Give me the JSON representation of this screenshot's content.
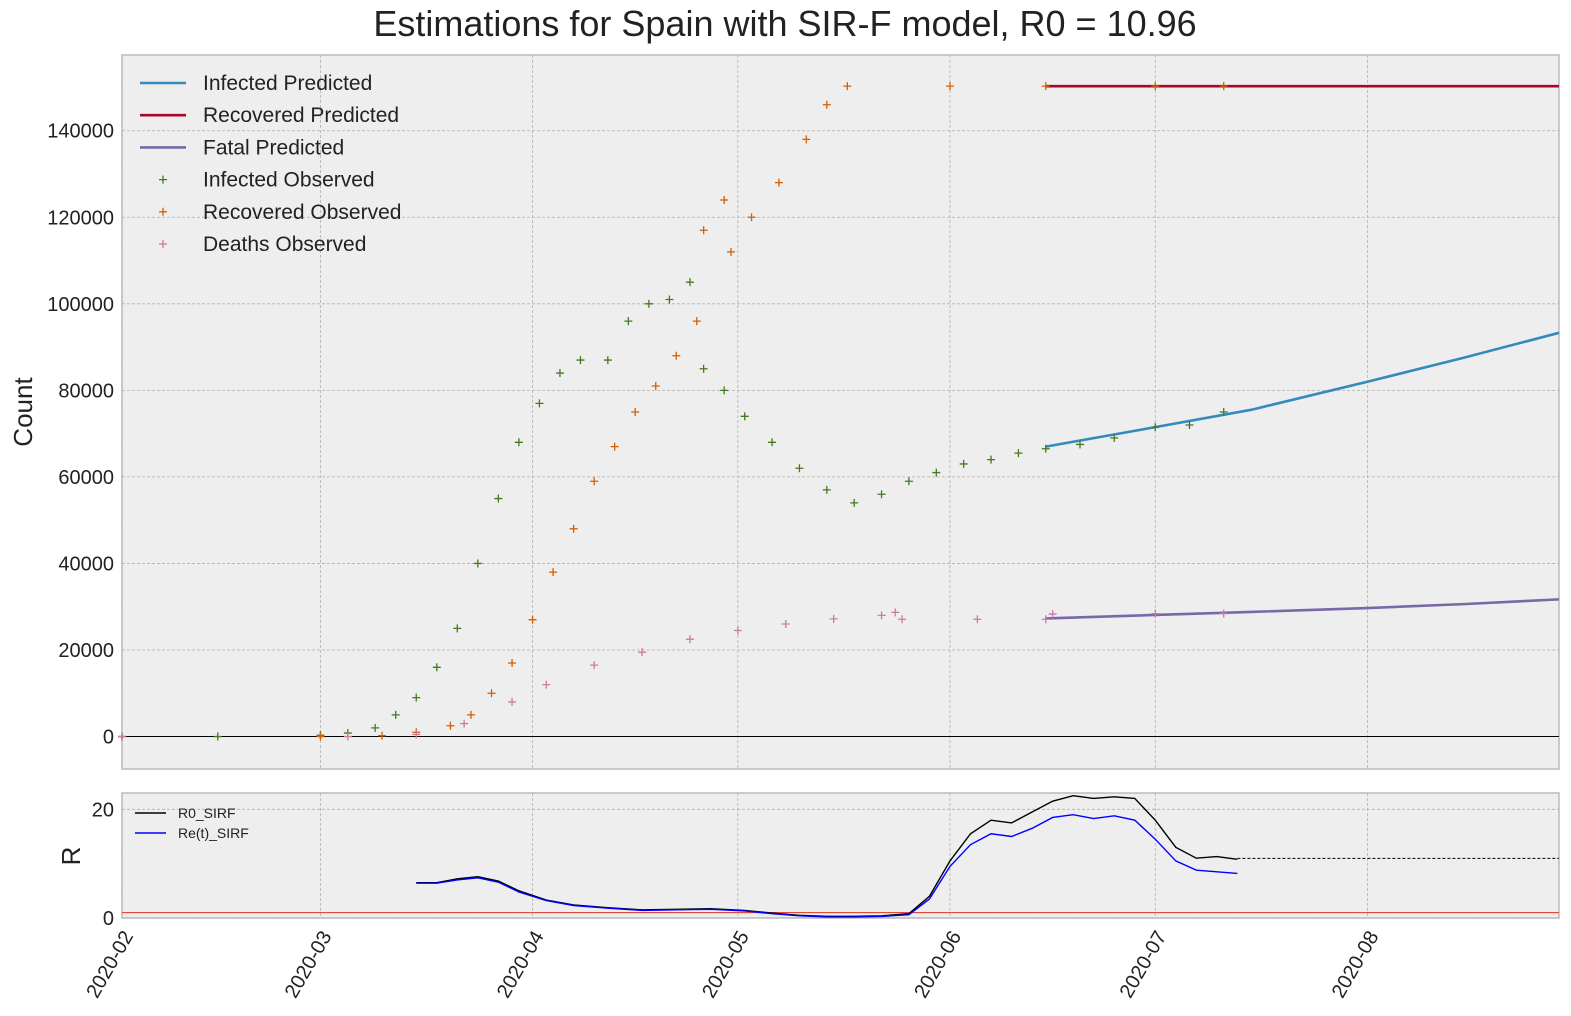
{
  "chart_data": [
    {
      "type": "line",
      "title": "Estimations for Spain with SIR-F model, R0 = 10.96",
      "xlabel": "",
      "ylabel": "Count",
      "xlim": [
        "2020-02-01",
        "2020-08-29"
      ],
      "ylim": [
        -7500,
        157500
      ],
      "yticks": [
        "0",
        "20000",
        "40000",
        "60000",
        "80000",
        "100000",
        "120000",
        "140000"
      ],
      "grid": true,
      "legend": "top-left",
      "series": [
        {
          "name": "Infected Predicted",
          "style": "line",
          "color": "#348abd",
          "x": [
            "2020-06-15",
            "2020-07-01",
            "2020-07-15",
            "2020-08-01",
            "2020-08-15",
            "2020-08-29"
          ],
          "y": [
            67000,
            71500,
            75500,
            82000,
            87500,
            93300
          ]
        },
        {
          "name": "Recovered Predicted",
          "style": "line",
          "color": "#a60628",
          "x": [
            "2020-06-15",
            "2020-08-29"
          ],
          "y": [
            150300,
            150300
          ]
        },
        {
          "name": "Fatal Predicted",
          "style": "line",
          "color": "#7a68a6",
          "x": [
            "2020-06-15",
            "2020-07-01",
            "2020-07-15",
            "2020-08-01",
            "2020-08-15",
            "2020-08-29"
          ],
          "y": [
            27300,
            28100,
            28800,
            29700,
            30600,
            31700
          ]
        },
        {
          "name": "Infected Observed",
          "style": "marker",
          "color": "#467821",
          "x": [
            "2020-02-01",
            "2020-02-15",
            "2020-03-01",
            "2020-03-05",
            "2020-03-09",
            "2020-03-12",
            "2020-03-15",
            "2020-03-18",
            "2020-03-21",
            "2020-03-24",
            "2020-03-27",
            "2020-03-30",
            "2020-04-02",
            "2020-04-05",
            "2020-04-08",
            "2020-04-12",
            "2020-04-15",
            "2020-04-18",
            "2020-04-21",
            "2020-04-24",
            "2020-04-26",
            "2020-04-29",
            "2020-05-02",
            "2020-05-06",
            "2020-05-10",
            "2020-05-14",
            "2020-05-18",
            "2020-05-22",
            "2020-05-26",
            "2020-05-30",
            "2020-06-03",
            "2020-06-07",
            "2020-06-11",
            "2020-06-15",
            "2020-06-20",
            "2020-06-25",
            "2020-07-01",
            "2020-07-06",
            "2020-07-11"
          ],
          "y": [
            0,
            0,
            300,
            800,
            2000,
            5000,
            9000,
            16000,
            25000,
            40000,
            55000,
            68000,
            77000,
            84000,
            87000,
            87000,
            96000,
            100000,
            101000,
            105000,
            85000,
            80000,
            74000,
            68000,
            62000,
            57000,
            54000,
            56000,
            59000,
            61000,
            63000,
            64000,
            65500,
            66500,
            67500,
            69000,
            71500,
            72000,
            75000
          ]
        },
        {
          "name": "Recovered Observed",
          "style": "marker",
          "color": "#d55e00",
          "x": [
            "2020-02-01",
            "2020-03-01",
            "2020-03-10",
            "2020-03-15",
            "2020-03-20",
            "2020-03-23",
            "2020-03-26",
            "2020-03-29",
            "2020-04-01",
            "2020-04-04",
            "2020-04-07",
            "2020-04-10",
            "2020-04-13",
            "2020-04-16",
            "2020-04-19",
            "2020-04-22",
            "2020-04-25",
            "2020-04-26",
            "2020-04-29",
            "2020-04-30",
            "2020-05-03",
            "2020-05-07",
            "2020-05-11",
            "2020-05-14",
            "2020-05-17",
            "2020-06-01",
            "2020-06-15",
            "2020-07-01",
            "2020-07-11"
          ],
          "y": [
            0,
            0,
            200,
            1000,
            2500,
            5000,
            10000,
            17000,
            27000,
            38000,
            48000,
            59000,
            67000,
            75000,
            81000,
            88000,
            96000,
            117000,
            124000,
            112000,
            120000,
            128000,
            138000,
            146000,
            150300,
            150300,
            150300,
            150300,
            150300
          ]
        },
        {
          "name": "Deaths Observed",
          "style": "marker",
          "color": "#cc79a7",
          "x": [
            "2020-02-01",
            "2020-03-05",
            "2020-03-15",
            "2020-03-22",
            "2020-03-29",
            "2020-04-03",
            "2020-04-10",
            "2020-04-17",
            "2020-04-24",
            "2020-05-01",
            "2020-05-08",
            "2020-05-15",
            "2020-05-22",
            "2020-05-24",
            "2020-05-25",
            "2020-06-05",
            "2020-06-15",
            "2020-06-16",
            "2020-07-01",
            "2020-07-11"
          ],
          "y": [
            0,
            0,
            500,
            3000,
            8000,
            12000,
            16500,
            19500,
            22500,
            24500,
            26000,
            27200,
            28000,
            28700,
            27100,
            27100,
            27100,
            28300,
            28400,
            28400
          ]
        }
      ]
    },
    {
      "type": "line",
      "title": "",
      "xlabel": "",
      "ylabel": "R",
      "xlim": [
        "2020-02-01",
        "2020-08-29"
      ],
      "ylim": [
        0,
        23
      ],
      "yticks": [
        "0",
        "20"
      ],
      "xticks": [
        "2020-02",
        "2020-03",
        "2020-04",
        "2020-05",
        "2020-06",
        "2020-07",
        "2020-08"
      ],
      "grid": true,
      "legend": "top-left",
      "reference_line": {
        "y": 1,
        "color": "#e24a33"
      },
      "series": [
        {
          "name": "R0_SIRF",
          "color": "#000000",
          "x": [
            "2020-03-15",
            "2020-03-18",
            "2020-03-21",
            "2020-03-24",
            "2020-03-27",
            "2020-03-30",
            "2020-04-03",
            "2020-04-07",
            "2020-04-12",
            "2020-04-17",
            "2020-04-22",
            "2020-04-27",
            "2020-05-02",
            "2020-05-06",
            "2020-05-10",
            "2020-05-14",
            "2020-05-18",
            "2020-05-22",
            "2020-05-26",
            "2020-05-29",
            "2020-06-01",
            "2020-06-04",
            "2020-06-07",
            "2020-06-10",
            "2020-06-13",
            "2020-06-16",
            "2020-06-19",
            "2020-06-22",
            "2020-06-25",
            "2020-06-28",
            "2020-07-01",
            "2020-07-04",
            "2020-07-07",
            "2020-07-10",
            "2020-07-13"
          ],
          "y": [
            6.5,
            6.5,
            7.2,
            7.6,
            6.8,
            5.0,
            3.3,
            2.4,
            1.9,
            1.5,
            1.6,
            1.7,
            1.4,
            0.9,
            0.5,
            0.3,
            0.3,
            0.4,
            0.8,
            4.0,
            10.5,
            15.5,
            18.0,
            17.5,
            19.5,
            21.5,
            22.5,
            22.0,
            22.3,
            22.0,
            18.0,
            13.0,
            11.0,
            11.3,
            10.8
          ]
        },
        {
          "name": "Re(t)_SIRF",
          "color": "#0000ff",
          "x": [
            "2020-03-15",
            "2020-03-18",
            "2020-03-21",
            "2020-03-24",
            "2020-03-27",
            "2020-03-30",
            "2020-04-03",
            "2020-04-07",
            "2020-04-12",
            "2020-04-17",
            "2020-04-22",
            "2020-04-27",
            "2020-05-02",
            "2020-05-06",
            "2020-05-10",
            "2020-05-14",
            "2020-05-18",
            "2020-05-22",
            "2020-05-26",
            "2020-05-29",
            "2020-06-01",
            "2020-06-04",
            "2020-06-07",
            "2020-06-10",
            "2020-06-13",
            "2020-06-16",
            "2020-06-19",
            "2020-06-22",
            "2020-06-25",
            "2020-06-28",
            "2020-07-01",
            "2020-07-04",
            "2020-07-07",
            "2020-07-10",
            "2020-07-13"
          ],
          "y": [
            6.4,
            6.4,
            7.0,
            7.4,
            6.6,
            4.8,
            3.2,
            2.3,
            1.8,
            1.4,
            1.5,
            1.6,
            1.3,
            0.8,
            0.4,
            0.2,
            0.2,
            0.3,
            0.6,
            3.5,
            9.5,
            13.5,
            15.5,
            15.0,
            16.5,
            18.5,
            19.0,
            18.3,
            18.8,
            18.0,
            14.5,
            10.5,
            8.8,
            8.5,
            8.2
          ]
        },
        {
          "name": "",
          "style": "dashed",
          "color": "#000000",
          "x": [
            "2020-07-13",
            "2020-08-29"
          ],
          "y": [
            10.96,
            10.96
          ]
        }
      ]
    }
  ]
}
